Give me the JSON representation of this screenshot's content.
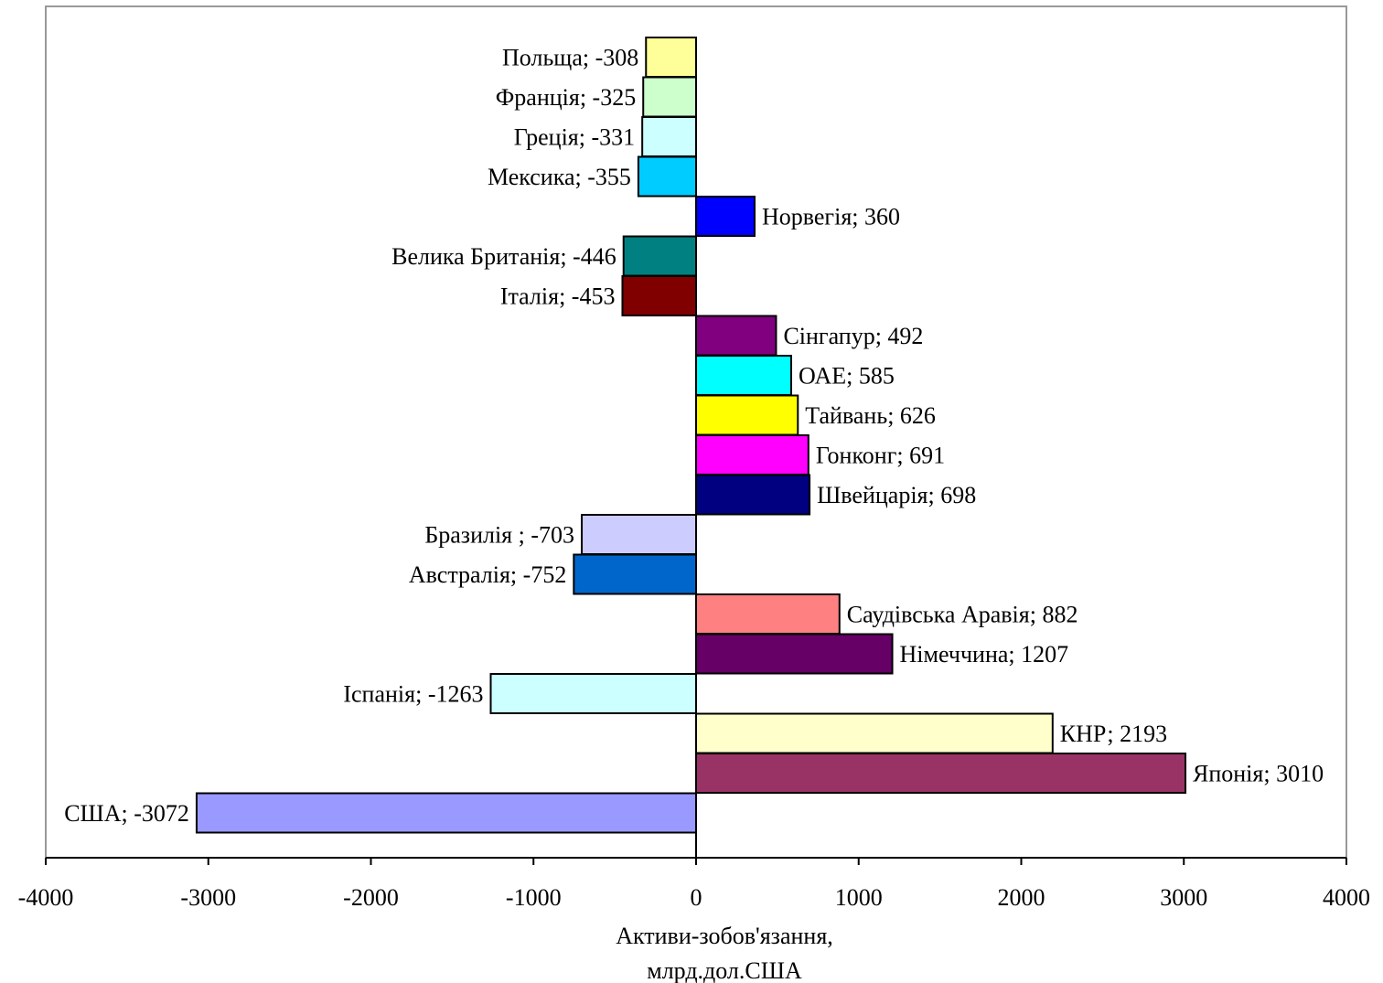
{
  "chart_data": {
    "type": "bar",
    "orientation": "horizontal",
    "title": "",
    "xlabel_lines": [
      "Активи-зобов'язання,",
      "млрд.дол.США"
    ],
    "ylabel": "",
    "xlim": [
      -4000,
      4000
    ],
    "xticks": [
      -4000,
      -3000,
      -2000,
      -1000,
      0,
      1000,
      2000,
      3000,
      4000
    ],
    "grid": false,
    "legend": "none",
    "bars": [
      {
        "category": "Польща",
        "value": -308,
        "label": "Польща; -308",
        "color": "#FFFF99"
      },
      {
        "category": "Франція",
        "value": -325,
        "label": "Франція; -325",
        "color": "#CCFFCC"
      },
      {
        "category": "Греція",
        "value": -331,
        "label": "Греція; -331",
        "color": "#CCFFFF"
      },
      {
        "category": "Мексика",
        "value": -355,
        "label": "Мексика; -355",
        "color": "#00CCFF"
      },
      {
        "category": "Норвегія",
        "value": 360,
        "label": "Норвегія; 360",
        "color": "#0000FF"
      },
      {
        "category": "Велика Британія",
        "value": -446,
        "label": "Велика Британія; -446",
        "color": "#008080"
      },
      {
        "category": "Італія",
        "value": -453,
        "label": "Італія; -453",
        "color": "#800000"
      },
      {
        "category": "Сінгапур",
        "value": 492,
        "label": "Сінгапур; 492",
        "color": "#800080"
      },
      {
        "category": "ОАЕ",
        "value": 585,
        "label": "ОАЕ; 585",
        "color": "#00FFFF"
      },
      {
        "category": "Тайвань",
        "value": 626,
        "label": "Тайвань; 626",
        "color": "#FFFF00"
      },
      {
        "category": "Гонконг",
        "value": 691,
        "label": "Гонконг; 691",
        "color": "#FF00FF"
      },
      {
        "category": "Швейцарія",
        "value": 698,
        "label": "Швейцарія; 698",
        "color": "#000080"
      },
      {
        "category": "Бразилія",
        "value": -703,
        "label": "Бразилія ; -703",
        "color": "#CCCCFF"
      },
      {
        "category": "Австралія",
        "value": -752,
        "label": "Австралія; -752",
        "color": "#0066CC"
      },
      {
        "category": "Саудівська Аравія",
        "value": 882,
        "label": "Саудівська Аравія; 882",
        "color": "#FF8080"
      },
      {
        "category": "Німеччина",
        "value": 1207,
        "label": "Німеччина; 1207",
        "color": "#660066"
      },
      {
        "category": "Іспанія",
        "value": -1263,
        "label": "Іспанія; -1263",
        "color": "#CCFFFF"
      },
      {
        "category": "КНР",
        "value": 2193,
        "label": "КНР; 2193",
        "color": "#FFFFCC"
      },
      {
        "category": "Японія",
        "value": 3010,
        "label": "Японія; 3010",
        "color": "#993366"
      },
      {
        "category": "США",
        "value": -3072,
        "label": "США; -3072",
        "color": "#9999FF"
      }
    ]
  }
}
